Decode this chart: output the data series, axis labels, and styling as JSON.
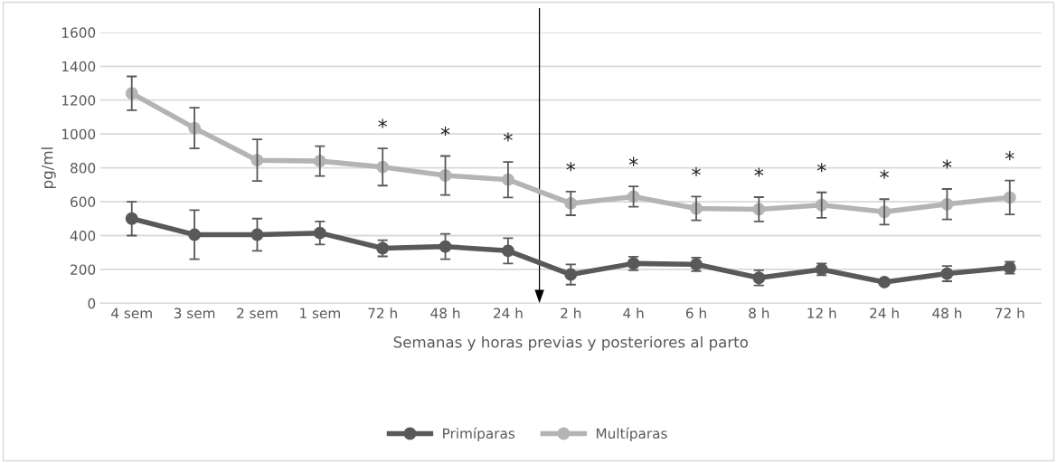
{
  "chart_data": {
    "type": "line",
    "xlabel": "Semanas y horas previas y posteriores al parto",
    "ylabel": "pg/ml",
    "categories": [
      "4 sem",
      "3 sem",
      "2 sem",
      "1 sem",
      "72 h",
      "48 h",
      "24 h",
      "2 h",
      "4 h",
      "6 h",
      "8 h",
      "12 h",
      "24 h",
      "48 h",
      "72 h"
    ],
    "series": [
      {
        "name": "Primíparas",
        "color": "#595959",
        "values": [
          500,
          405,
          405,
          415,
          325,
          335,
          310,
          170,
          235,
          230,
          150,
          200,
          125,
          175,
          210
        ],
        "errors": [
          100,
          145,
          95,
          68,
          48,
          75,
          75,
          60,
          40,
          40,
          45,
          35,
          10,
          45,
          35
        ]
      },
      {
        "name": "Multíparas",
        "color": "#b4b4b4",
        "values": [
          1240,
          1035,
          845,
          840,
          805,
          755,
          730,
          590,
          630,
          560,
          555,
          580,
          540,
          585,
          625
        ],
        "errors": [
          100,
          120,
          123,
          88,
          110,
          115,
          105,
          70,
          60,
          70,
          72,
          75,
          75,
          90,
          100
        ]
      }
    ],
    "ylim": [
      0,
      1600
    ],
    "yticks": [
      0,
      200,
      400,
      600,
      800,
      1000,
      1200,
      1400,
      1600
    ],
    "grid": "y",
    "legend": "bottom",
    "marker": "circle",
    "line_style": "solid",
    "annotations": [
      "*",
      "*",
      "*",
      "*",
      "*",
      "*",
      "*",
      "*",
      "*",
      "*",
      "*"
    ]
  }
}
